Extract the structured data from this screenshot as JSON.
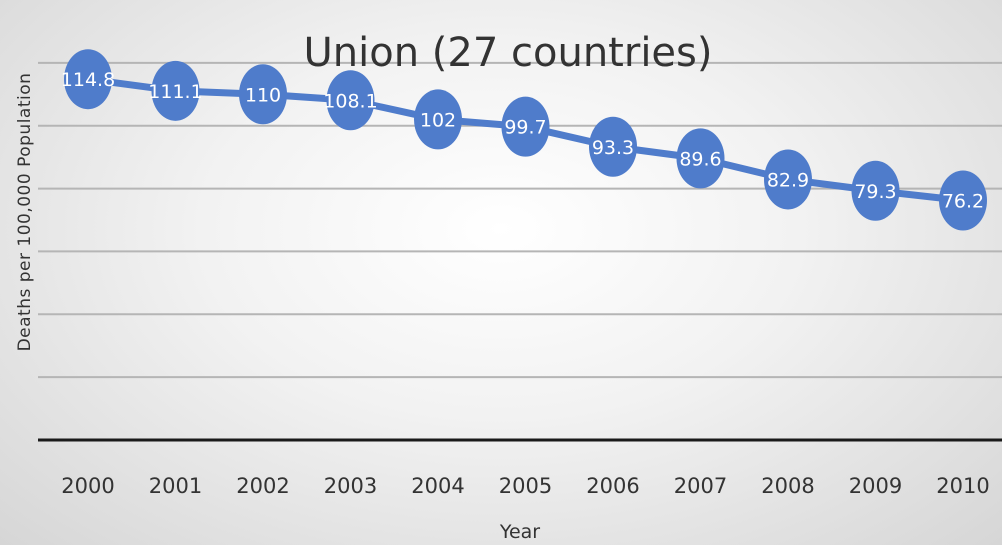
{
  "chart_data": {
    "type": "line",
    "title_lines": [
      "",
      "Union (27 countries)"
    ],
    "xlabel": "Year",
    "ylabel": "Deaths per 100,000 Population",
    "categories": [
      "2000",
      "2001",
      "2002",
      "2003",
      "2004",
      "2005",
      "2006",
      "2007",
      "2008",
      "2009",
      "2010"
    ],
    "series": [
      {
        "name": "",
        "values": [
          114.8,
          111.1,
          110,
          108.1,
          102,
          99.7,
          93.3,
          89.6,
          82.9,
          79.3,
          76.2
        ],
        "data_labels": [
          "114.8",
          "111.1",
          "110",
          "108.1",
          "102",
          "99.7",
          "93.3",
          "89.6",
          "82.9",
          "79.3",
          "76.2"
        ]
      }
    ],
    "ylim": [
      0,
      140
    ],
    "y_gridline_step": 20,
    "grid": true,
    "legend": "none",
    "colors": {
      "line": "#4f7ccb",
      "marker": "#4f7ccb",
      "data_label": "#ffffff",
      "text": "#333333",
      "gridline": "#b5b5b5",
      "axis": "#1a1a1a"
    }
  }
}
